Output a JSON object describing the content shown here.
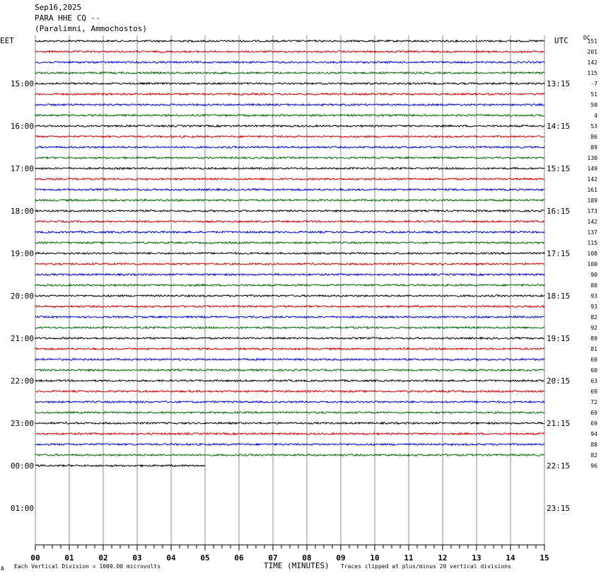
{
  "header": {
    "date": "Sep16,2025",
    "station": "PARA HHE CQ --",
    "location": "(Paralimni, Ammochostos)"
  },
  "chart_data": {
    "type": "line",
    "title": "",
    "left_timezone": "EET",
    "right_timezone": "UTC",
    "dc_label": "DC",
    "xlabel": "TIME (MINUTES)",
    "x_ticks": [
      "00",
      "01",
      "02",
      "03",
      "04",
      "05",
      "06",
      "07",
      "08",
      "09",
      "10",
      "11",
      "12",
      "13",
      "14",
      "15"
    ],
    "xlim": [
      0,
      15
    ],
    "left_hour_labels": [
      "15:00",
      "16:00",
      "17:00",
      "18:00",
      "19:00",
      "20:00",
      "21:00",
      "22:00",
      "23:00",
      "00:00",
      "01:00"
    ],
    "right_hour_labels": [
      "13:15",
      "14:15",
      "15:15",
      "16:15",
      "17:15",
      "18:15",
      "19:15",
      "20:15",
      "21:15",
      "22:15",
      "23:15"
    ],
    "trace_colors": [
      "#000000",
      "#cc0000",
      "#0000cc",
      "#006600"
    ],
    "dc_offsets": [
      151,
      201,
      142,
      115,
      -7,
      51,
      50,
      4,
      53,
      86,
      89,
      130,
      149,
      142,
      161,
      189,
      173,
      142,
      137,
      115,
      108,
      100,
      90,
      80,
      93,
      93,
      82,
      92,
      89,
      81,
      69,
      60,
      63,
      69,
      72,
      69,
      69,
      94,
      88,
      82,
      96
    ],
    "traces_complete": 40,
    "last_trace_minutes": 5,
    "footer_left": "Each Vertical Division = 1000.00 microvolts",
    "footer_right": "Traces clipped at plus/minus 20 vertical divisions",
    "corner_mark": "A"
  }
}
